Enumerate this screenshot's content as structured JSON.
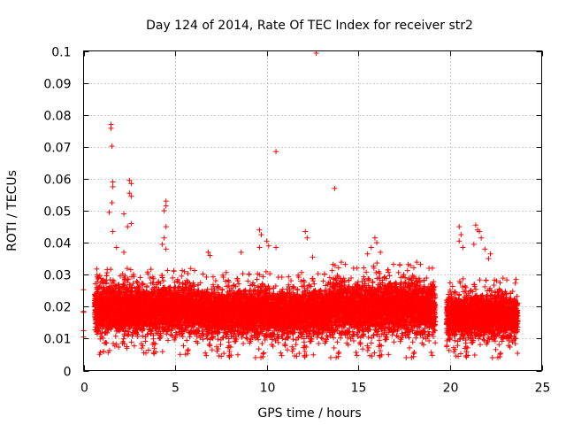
{
  "chart_data": {
    "type": "scatter",
    "title": "Day 124 of 2014, Rate Of TEC Index for receiver str2",
    "xlabel": "GPS time / hours",
    "ylabel": "ROTI / TECUs",
    "xlim": [
      0,
      25
    ],
    "ylim": [
      0,
      0.1
    ],
    "xticks": [
      0,
      5,
      10,
      15,
      20,
      25
    ],
    "yticks": [
      0,
      0.01,
      0.02,
      0.03,
      0.04,
      0.05,
      0.06,
      0.07,
      0.08,
      0.09,
      0.1
    ],
    "grid": true,
    "marker": "+",
    "color": "#ff0000",
    "data_gap_hours": [
      19.2,
      19.8
    ],
    "points": [
      {
        "x": 0.0,
        "y": 0.0253
      },
      {
        "x": 0.0,
        "y": 0.0185
      },
      {
        "x": 0.0,
        "y": 0.0182
      },
      {
        "x": 0.0,
        "y": 0.0125
      },
      {
        "x": 0.0,
        "y": 0.0105
      },
      {
        "x": 1.5,
        "y": 0.077
      },
      {
        "x": 1.5,
        "y": 0.0758
      },
      {
        "x": 1.55,
        "y": 0.0702
      },
      {
        "x": 1.6,
        "y": 0.059
      },
      {
        "x": 1.6,
        "y": 0.0575
      },
      {
        "x": 1.55,
        "y": 0.0525
      },
      {
        "x": 1.4,
        "y": 0.0495
      },
      {
        "x": 1.6,
        "y": 0.0435
      },
      {
        "x": 2.2,
        "y": 0.049
      },
      {
        "x": 2.5,
        "y": 0.0595
      },
      {
        "x": 2.6,
        "y": 0.0585
      },
      {
        "x": 2.5,
        "y": 0.0555
      },
      {
        "x": 2.6,
        "y": 0.0545
      },
      {
        "x": 2.6,
        "y": 0.046
      },
      {
        "x": 2.4,
        "y": 0.045
      },
      {
        "x": 1.8,
        "y": 0.0385
      },
      {
        "x": 2.2,
        "y": 0.037
      },
      {
        "x": 4.5,
        "y": 0.053
      },
      {
        "x": 4.5,
        "y": 0.0515
      },
      {
        "x": 4.4,
        "y": 0.05
      },
      {
        "x": 4.5,
        "y": 0.045
      },
      {
        "x": 4.4,
        "y": 0.0415
      },
      {
        "x": 4.3,
        "y": 0.0395
      },
      {
        "x": 4.5,
        "y": 0.038
      },
      {
        "x": 6.8,
        "y": 0.037
      },
      {
        "x": 6.9,
        "y": 0.036
      },
      {
        "x": 8.6,
        "y": 0.037
      },
      {
        "x": 9.6,
        "y": 0.044
      },
      {
        "x": 9.7,
        "y": 0.0425
      },
      {
        "x": 10.0,
        "y": 0.0405
      },
      {
        "x": 10.1,
        "y": 0.039
      },
      {
        "x": 9.6,
        "y": 0.0385
      },
      {
        "x": 10.5,
        "y": 0.0385
      },
      {
        "x": 10.5,
        "y": 0.0685
      },
      {
        "x": 12.1,
        "y": 0.0435
      },
      {
        "x": 12.2,
        "y": 0.0415
      },
      {
        "x": 12.7,
        "y": 0.0993
      },
      {
        "x": 13.7,
        "y": 0.057
      },
      {
        "x": 12.5,
        "y": 0.0355
      },
      {
        "x": 15.9,
        "y": 0.0415
      },
      {
        "x": 16.0,
        "y": 0.04
      },
      {
        "x": 15.7,
        "y": 0.0385
      },
      {
        "x": 16.2,
        "y": 0.037
      },
      {
        "x": 15.5,
        "y": 0.0365
      },
      {
        "x": 20.5,
        "y": 0.045
      },
      {
        "x": 20.6,
        "y": 0.0425
      },
      {
        "x": 20.5,
        "y": 0.0405
      },
      {
        "x": 20.7,
        "y": 0.0385
      },
      {
        "x": 21.4,
        "y": 0.0455
      },
      {
        "x": 21.5,
        "y": 0.044
      },
      {
        "x": 21.6,
        "y": 0.0435
      },
      {
        "x": 21.7,
        "y": 0.0415
      },
      {
        "x": 21.3,
        "y": 0.0395
      },
      {
        "x": 21.9,
        "y": 0.038
      },
      {
        "x": 22.2,
        "y": 0.0365
      },
      {
        "x": 22.1,
        "y": 0.035
      },
      {
        "x": 23.6,
        "y": 0.0285
      }
    ],
    "bulk_segments": [
      {
        "x_start": 0.6,
        "x_end": 6.6,
        "y_min": 0.005,
        "y_max": 0.032
      },
      {
        "x_start": 6.6,
        "x_end": 13.4,
        "y_min": 0.004,
        "y_max": 0.031
      },
      {
        "x_start": 13.4,
        "x_end": 19.2,
        "y_min": 0.004,
        "y_max": 0.034
      },
      {
        "x_start": 19.8,
        "x_end": 23.7,
        "y_min": 0.004,
        "y_max": 0.029
      }
    ]
  }
}
